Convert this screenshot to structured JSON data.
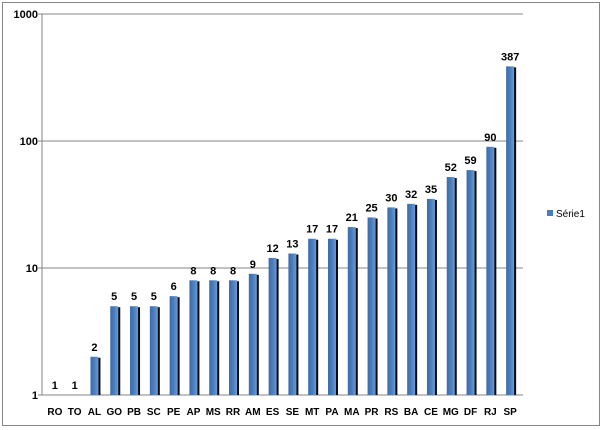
{
  "chart_data": {
    "type": "bar",
    "scale": "log",
    "ylim": [
      1,
      1000
    ],
    "yticks": [
      "1",
      "10",
      "100",
      "1000"
    ],
    "grid": true,
    "legend_position": "right",
    "title": "",
    "xlabel": "",
    "ylabel": "",
    "categories": [
      "RO",
      "TO",
      "AL",
      "GO",
      "PB",
      "SC",
      "PE",
      "AP",
      "MS",
      "RR",
      "AM",
      "ES",
      "SE",
      "MT",
      "PA",
      "MA",
      "PR",
      "RS",
      "BA",
      "CE",
      "MG",
      "DF",
      "RJ",
      "SP"
    ],
    "series": [
      {
        "name": "Série1",
        "color": "#4A7EBB",
        "values": [
          1,
          1,
          2,
          5,
          5,
          5,
          6,
          8,
          8,
          8,
          9,
          12,
          13,
          17,
          17,
          21,
          25,
          30,
          32,
          35,
          52,
          59,
          90,
          387
        ]
      }
    ]
  }
}
